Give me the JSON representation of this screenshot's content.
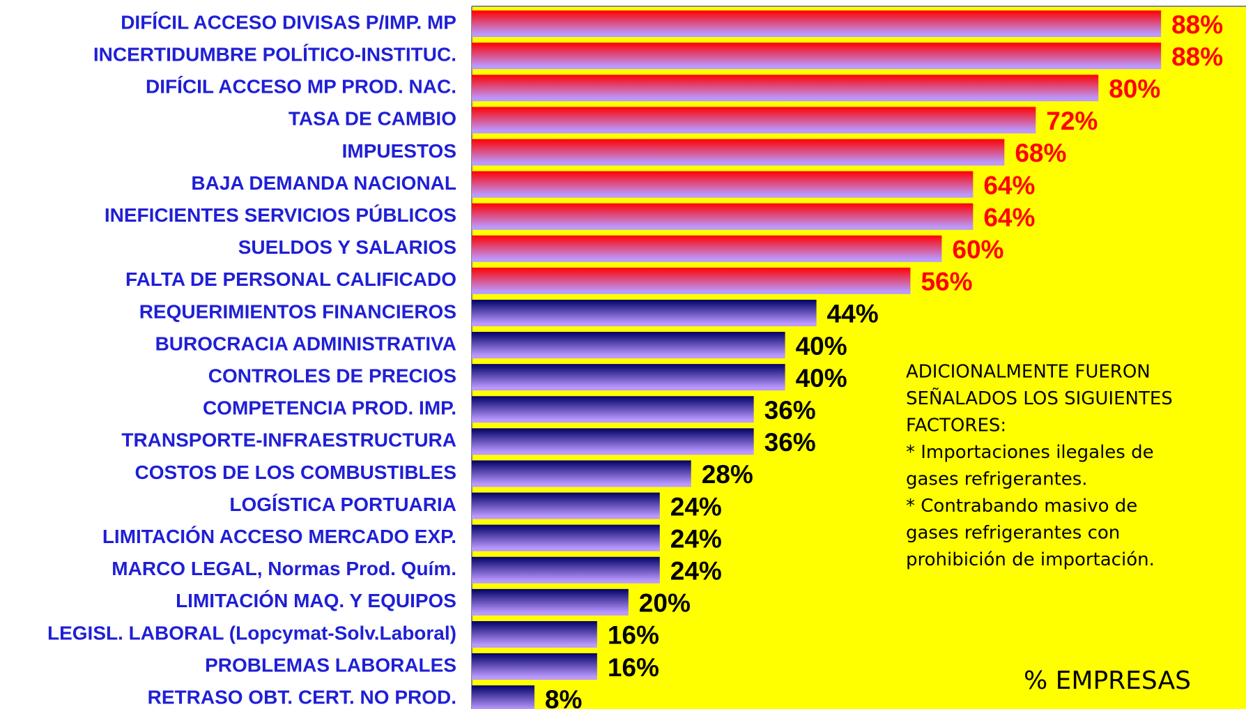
{
  "chart_data": {
    "type": "barh",
    "categories": [
      "DIFÍCIL ACCESO DIVISAS P/IMP. MP",
      "INCERTIDUMBRE POLÍTICO-INSTITUC.",
      "DIFÍCIL ACCESO MP PROD. NAC.",
      "TASA DE CAMBIO",
      "IMPUESTOS",
      "BAJA DEMANDA NACIONAL",
      "INEFICIENTES SERVICIOS PÚBLICOS",
      "SUELDOS Y SALARIOS",
      "FALTA DE PERSONAL CALIFICADO",
      "REQUERIMIENTOS FINANCIEROS",
      "BUROCRACIA ADMINISTRATIVA",
      "CONTROLES DE PRECIOS",
      "COMPETENCIA PROD. IMP.",
      "TRANSPORTE-INFRAESTRUCTURA",
      "COSTOS DE LOS COMBUSTIBLES",
      "LOGÍSTICA PORTUARIA",
      "LIMITACIÓN ACCESO MERCADO EXP.",
      "MARCO LEGAL, Normas Prod. Quím.",
      "LIMITACIÓN MAQ. Y EQUIPOS",
      "LEGISL. LABORAL (Lopcymat-Solv.Laboral)",
      "PROBLEMAS LABORALES",
      "RETRASO OBT. CERT. NO PROD."
    ],
    "values": [
      88,
      88,
      80,
      72,
      68,
      64,
      64,
      60,
      56,
      44,
      40,
      40,
      36,
      36,
      28,
      24,
      24,
      24,
      20,
      16,
      16,
      8
    ],
    "value_labels": [
      "88%",
      "88%",
      "80%",
      "72%",
      "68%",
      "64%",
      "64%",
      "60%",
      "56%",
      "44%",
      "40%",
      "40%",
      "36%",
      "36%",
      "28%",
      "24%",
      "24%",
      "24%",
      "20%",
      "16%",
      "16%",
      "8%"
    ],
    "colors": [
      "#ff0000",
      "#ff0000",
      "#ff0000",
      "#ff0000",
      "#ff0000",
      "#ff0000",
      "#ff0000",
      "#ff0000",
      "#ff0000",
      "#000066",
      "#000066",
      "#000066",
      "#000066",
      "#000066",
      "#000066",
      "#000066",
      "#000066",
      "#000066",
      "#000066",
      "#000066",
      "#000066",
      "#000066"
    ],
    "label_colors": [
      "#ff0000",
      "#ff0000",
      "#ff0000",
      "#ff0000",
      "#ff0000",
      "#ff0000",
      "#ff0000",
      "#ff0000",
      "#ff0000",
      "#000000",
      "#000000",
      "#000000",
      "#000000",
      "#000000",
      "#000000",
      "#000000",
      "#000000",
      "#000000",
      "#000000",
      "#000000",
      "#000000",
      "#000000"
    ],
    "xlim": [
      0,
      100
    ],
    "xlabel": "% EMPRESAS",
    "annotation": [
      "ADICIONALMENTE  FUERON",
      "SEÑALADOS LOS SIGUIENTES",
      "FACTORES:",
      "* Importaciones ilegales de",
      "gases refrigerantes.",
      "* Contrabando masivo de",
      "gases refrigerantes con",
      "prohibición de importación."
    ]
  }
}
